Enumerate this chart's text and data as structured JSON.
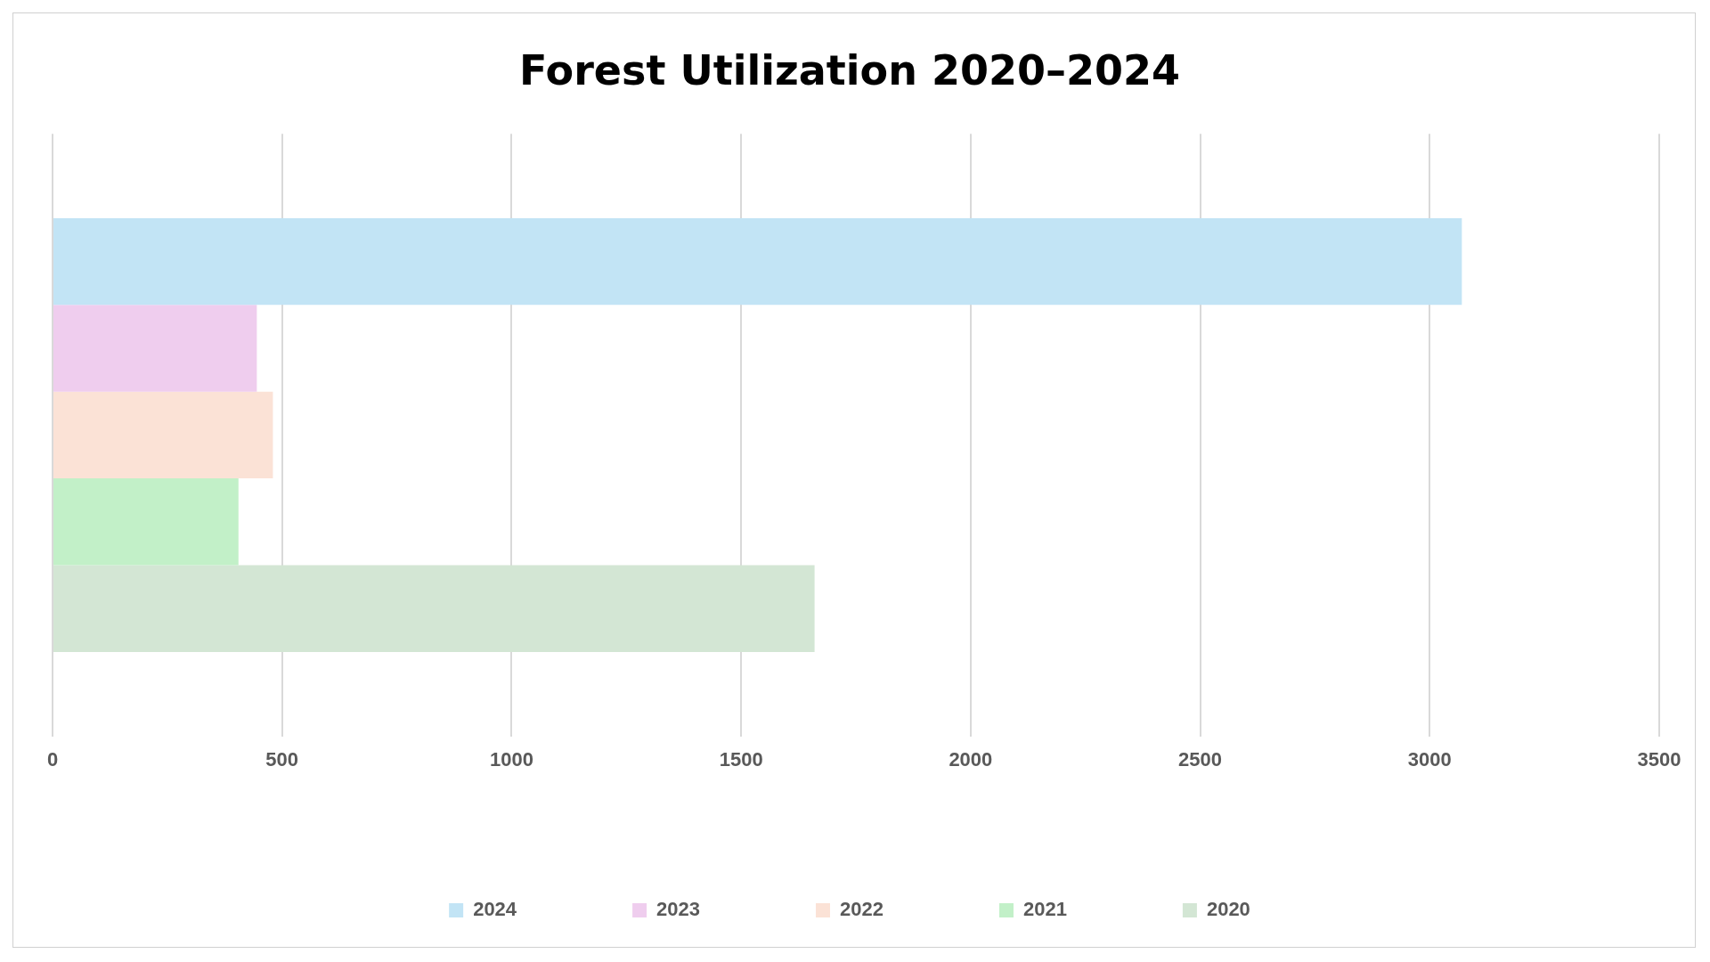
{
  "chart_data": {
    "type": "bar",
    "orientation": "horizontal",
    "title": "Forest Utilization 2020–2024",
    "categories": [
      null
    ],
    "series": [
      {
        "name": "2024",
        "color": "#c2e4f5",
        "values": [
          3070
        ]
      },
      {
        "name": "2023",
        "color": "#efcdee",
        "values": [
          445
        ]
      },
      {
        "name": "2022",
        "color": "#fbe2d6",
        "values": [
          480
        ]
      },
      {
        "name": "2021",
        "color": "#c2f0c8",
        "values": [
          405
        ]
      },
      {
        "name": "2020",
        "color": "#d3e6d4",
        "values": [
          1660
        ]
      }
    ],
    "xlim": [
      0,
      3500
    ],
    "xticks": [
      0,
      500,
      1000,
      1500,
      2000,
      2500,
      3000,
      3500
    ],
    "grid": "x",
    "legend": "bottom"
  }
}
